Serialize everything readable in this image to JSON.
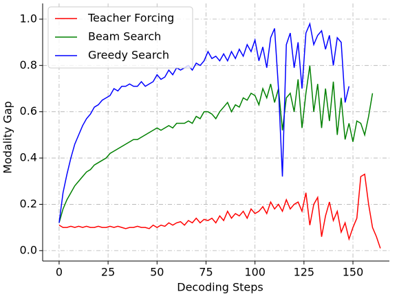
{
  "chart_data": {
    "type": "line",
    "x_label": "Decoding Steps",
    "y_label": "Modality Gap",
    "x": [
      0,
      2,
      4,
      6,
      8,
      10,
      12,
      14,
      16,
      18,
      20,
      22,
      24,
      26,
      28,
      30,
      32,
      34,
      36,
      38,
      40,
      42,
      44,
      46,
      48,
      50,
      52,
      54,
      56,
      58,
      60,
      62,
      64,
      66,
      68,
      70,
      72,
      74,
      76,
      78,
      80,
      82,
      84,
      86,
      88,
      90,
      92,
      94,
      96,
      98,
      100,
      102,
      104,
      106,
      108,
      110,
      112,
      114,
      116,
      118,
      120,
      122,
      124,
      126,
      128,
      130,
      132,
      134,
      136,
      138,
      140,
      142,
      144,
      146,
      148,
      150,
      152,
      154,
      156,
      158,
      160,
      162,
      164
    ],
    "series": [
      {
        "name": "Teacher Forcing",
        "color": "#ff0000",
        "values": [
          0.11,
          0.1,
          0.1,
          0.105,
          0.1,
          0.105,
          0.1,
          0.105,
          0.1,
          0.1,
          0.105,
          0.1,
          0.1,
          0.105,
          0.1,
          0.105,
          0.1,
          0.095,
          0.1,
          0.1,
          0.105,
          0.1,
          0.1,
          0.095,
          0.11,
          0.1,
          0.11,
          0.105,
          0.12,
          0.11,
          0.12,
          0.125,
          0.11,
          0.13,
          0.12,
          0.14,
          0.12,
          0.135,
          0.13,
          0.14,
          0.12,
          0.15,
          0.13,
          0.17,
          0.14,
          0.16,
          0.15,
          0.17,
          0.14,
          0.18,
          0.16,
          0.17,
          0.19,
          0.16,
          0.21,
          0.18,
          0.2,
          0.17,
          0.22,
          0.18,
          0.2,
          0.21,
          0.17,
          0.25,
          0.11,
          0.2,
          0.23,
          0.06,
          0.15,
          0.21,
          0.13,
          0.17,
          0.08,
          0.12,
          0.05,
          0.1,
          0.14,
          0.32,
          0.33,
          0.2,
          0.1,
          0.06,
          0.01
        ]
      },
      {
        "name": "Beam Search",
        "color": "#008000",
        "values": [
          0.12,
          0.18,
          0.22,
          0.25,
          0.28,
          0.3,
          0.32,
          0.34,
          0.35,
          0.37,
          0.38,
          0.39,
          0.4,
          0.42,
          0.43,
          0.44,
          0.45,
          0.46,
          0.47,
          0.48,
          0.48,
          0.49,
          0.5,
          0.51,
          0.52,
          0.53,
          0.52,
          0.53,
          0.54,
          0.53,
          0.55,
          0.55,
          0.55,
          0.56,
          0.55,
          0.58,
          0.57,
          0.6,
          0.6,
          0.59,
          0.57,
          0.6,
          0.62,
          0.64,
          0.6,
          0.63,
          0.62,
          0.66,
          0.65,
          0.68,
          0.67,
          0.63,
          0.7,
          0.66,
          0.72,
          0.64,
          0.7,
          0.52,
          0.66,
          0.68,
          0.6,
          0.74,
          0.53,
          0.68,
          0.8,
          0.6,
          0.72,
          0.53,
          0.7,
          0.56,
          0.73,
          0.5,
          0.66,
          0.48,
          0.55,
          0.47,
          0.56,
          0.55,
          0.5,
          0.58,
          0.68,
          null,
          null
        ]
      },
      {
        "name": "Greedy Search",
        "color": "#0000ff",
        "values": [
          0.12,
          0.25,
          0.33,
          0.4,
          0.46,
          0.5,
          0.54,
          0.57,
          0.59,
          0.62,
          0.63,
          0.65,
          0.66,
          0.67,
          0.7,
          0.69,
          0.71,
          0.71,
          0.72,
          0.71,
          0.71,
          0.73,
          0.71,
          0.72,
          0.73,
          0.76,
          0.74,
          0.75,
          0.78,
          0.76,
          0.79,
          0.78,
          0.79,
          0.8,
          0.78,
          0.81,
          0.8,
          0.82,
          0.86,
          0.83,
          0.84,
          0.82,
          0.85,
          0.82,
          0.86,
          0.83,
          0.87,
          0.84,
          0.89,
          0.86,
          0.91,
          0.82,
          0.88,
          0.79,
          0.92,
          0.96,
          0.7,
          0.32,
          0.89,
          0.94,
          0.79,
          0.9,
          0.7,
          0.94,
          0.98,
          0.89,
          0.93,
          0.95,
          0.87,
          0.93,
          0.8,
          0.92,
          0.9,
          0.64,
          0.71,
          null,
          null,
          null,
          null,
          null,
          null,
          null,
          null
        ]
      }
    ],
    "xlim": [
      -8.4,
      168.6
    ],
    "xticks": [
      0,
      25,
      50,
      75,
      100,
      125,
      150
    ],
    "ylim": [
      -0.045,
      1.068
    ],
    "yticks": [
      {
        "value": 0,
        "label": "0.0"
      },
      {
        "value": 0.2,
        "label": "0.2"
      },
      {
        "value": 0.4,
        "label": "0.4"
      },
      {
        "value": 0.6,
        "label": "0.6"
      },
      {
        "value": 0.8,
        "label": "0.8"
      },
      {
        "value": 1,
        "label": "1.0"
      }
    ],
    "grid": true,
    "legend": "upper left"
  }
}
